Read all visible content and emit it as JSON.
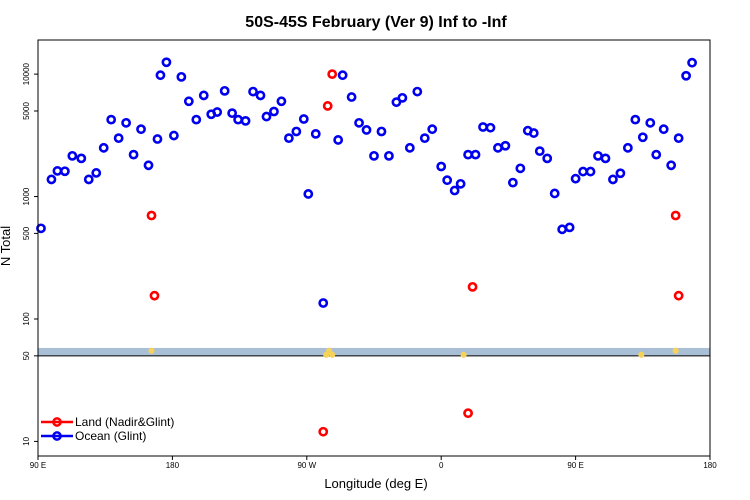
{
  "chart_data": {
    "type": "scatter",
    "title": "50S-45S February (Ver 9)   Inf to -Inf",
    "xlabel": "Longitude (deg E)",
    "ylabel": "N Total",
    "y_scale": "log",
    "ylim": [
      7.6,
      19000
    ],
    "y_ticks": [
      {
        "value": 10,
        "label": "10"
      },
      {
        "value": 50,
        "label": "50"
      },
      {
        "value": 100,
        "label": "100"
      },
      {
        "value": 500,
        "label": "500"
      },
      {
        "value": 1000,
        "label": "1000"
      },
      {
        "value": 5000,
        "label": "5000"
      },
      {
        "value": 10000,
        "label": "10000"
      }
    ],
    "x_ticks": [
      {
        "value": 90,
        "label": "90 E"
      },
      {
        "value": 180,
        "label": "180"
      },
      {
        "value": 270,
        "label": "90 W"
      },
      {
        "value": 360,
        "label": "0"
      },
      {
        "value": 450,
        "label": "90 E"
      },
      {
        "value": 540,
        "label": "180"
      }
    ],
    "xlim": [
      90,
      540
    ],
    "band": {
      "y_from": 50,
      "y_to": 58,
      "color": "#a9bfd6"
    },
    "yellow_marks": [
      {
        "x": 166,
        "y": 55
      },
      {
        "x": 285,
        "y": 55
      },
      {
        "x": 283,
        "y": 51
      },
      {
        "x": 287,
        "y": 51
      },
      {
        "x": 375,
        "y": 51
      },
      {
        "x": 494,
        "y": 51
      },
      {
        "x": 517,
        "y": 55
      }
    ],
    "series": [
      {
        "name": "Land (Nadir&Glint)",
        "color": "#ff0000",
        "points": [
          {
            "x": 166,
            "y": 700
          },
          {
            "x": 168,
            "y": 155
          },
          {
            "x": 284,
            "y": 5500
          },
          {
            "x": 287,
            "y": 10000
          },
          {
            "x": 381,
            "y": 183
          },
          {
            "x": 517,
            "y": 700
          },
          {
            "x": 519,
            "y": 155
          },
          {
            "x": 281,
            "y": 12
          },
          {
            "x": 378,
            "y": 17
          }
        ]
      },
      {
        "name": "Ocean (Glint)",
        "color": "#0000ee",
        "points": [
          {
            "x": 92,
            "y": 550
          },
          {
            "x": 99,
            "y": 1380
          },
          {
            "x": 103,
            "y": 1620
          },
          {
            "x": 108,
            "y": 1610
          },
          {
            "x": 113,
            "y": 2150
          },
          {
            "x": 119,
            "y": 2050
          },
          {
            "x": 124,
            "y": 1380
          },
          {
            "x": 129,
            "y": 1560
          },
          {
            "x": 134,
            "y": 2500
          },
          {
            "x": 139,
            "y": 4250
          },
          {
            "x": 144,
            "y": 3000
          },
          {
            "x": 149,
            "y": 4000
          },
          {
            "x": 154,
            "y": 2200
          },
          {
            "x": 159,
            "y": 3550
          },
          {
            "x": 164,
            "y": 1800
          },
          {
            "x": 170,
            "y": 2950
          },
          {
            "x": 172,
            "y": 9800
          },
          {
            "x": 176,
            "y": 12500
          },
          {
            "x": 181,
            "y": 3150
          },
          {
            "x": 186,
            "y": 9500
          },
          {
            "x": 191,
            "y": 6000
          },
          {
            "x": 196,
            "y": 4250
          },
          {
            "x": 201,
            "y": 6700
          },
          {
            "x": 206,
            "y": 4700
          },
          {
            "x": 210,
            "y": 4900
          },
          {
            "x": 215,
            "y": 7300
          },
          {
            "x": 220,
            "y": 4800
          },
          {
            "x": 224,
            "y": 4250
          },
          {
            "x": 229,
            "y": 4150
          },
          {
            "x": 234,
            "y": 7200
          },
          {
            "x": 239,
            "y": 6700
          },
          {
            "x": 243,
            "y": 4500
          },
          {
            "x": 248,
            "y": 4950
          },
          {
            "x": 253,
            "y": 6000
          },
          {
            "x": 258,
            "y": 3000
          },
          {
            "x": 263,
            "y": 3400
          },
          {
            "x": 268,
            "y": 4300
          },
          {
            "x": 271,
            "y": 1050
          },
          {
            "x": 276,
            "y": 3250
          },
          {
            "x": 281,
            "y": 135
          },
          {
            "x": 291,
            "y": 2900
          },
          {
            "x": 294,
            "y": 9800
          },
          {
            "x": 300,
            "y": 6500
          },
          {
            "x": 305,
            "y": 4000
          },
          {
            "x": 310,
            "y": 3500
          },
          {
            "x": 315,
            "y": 2150
          },
          {
            "x": 320,
            "y": 3400
          },
          {
            "x": 325,
            "y": 2150
          },
          {
            "x": 330,
            "y": 5900
          },
          {
            "x": 334,
            "y": 6400
          },
          {
            "x": 339,
            "y": 2500
          },
          {
            "x": 344,
            "y": 7200
          },
          {
            "x": 349,
            "y": 3000
          },
          {
            "x": 354,
            "y": 3550
          },
          {
            "x": 360,
            "y": 1760
          },
          {
            "x": 364,
            "y": 1360
          },
          {
            "x": 369,
            "y": 1120
          },
          {
            "x": 373,
            "y": 1270
          },
          {
            "x": 378,
            "y": 2200
          },
          {
            "x": 383,
            "y": 2200
          },
          {
            "x": 388,
            "y": 3700
          },
          {
            "x": 393,
            "y": 3650
          },
          {
            "x": 398,
            "y": 2500
          },
          {
            "x": 403,
            "y": 2600
          },
          {
            "x": 408,
            "y": 1300
          },
          {
            "x": 413,
            "y": 1700
          },
          {
            "x": 418,
            "y": 3450
          },
          {
            "x": 422,
            "y": 3300
          },
          {
            "x": 426,
            "y": 2350
          },
          {
            "x": 431,
            "y": 2050
          },
          {
            "x": 436,
            "y": 1060
          },
          {
            "x": 441,
            "y": 540
          },
          {
            "x": 446,
            "y": 560
          },
          {
            "x": 450,
            "y": 1400
          },
          {
            "x": 455,
            "y": 1600
          },
          {
            "x": 460,
            "y": 1600
          },
          {
            "x": 465,
            "y": 2150
          },
          {
            "x": 470,
            "y": 2050
          },
          {
            "x": 475,
            "y": 1380
          },
          {
            "x": 480,
            "y": 1550
          },
          {
            "x": 485,
            "y": 2500
          },
          {
            "x": 490,
            "y": 4250
          },
          {
            "x": 495,
            "y": 3050
          },
          {
            "x": 500,
            "y": 4000
          },
          {
            "x": 504,
            "y": 2200
          },
          {
            "x": 509,
            "y": 3550
          },
          {
            "x": 514,
            "y": 1800
          },
          {
            "x": 519,
            "y": 3000
          },
          {
            "x": 524,
            "y": 9700
          },
          {
            "x": 528,
            "y": 12400
          }
        ]
      }
    ],
    "legend": {
      "placement": "bottom-left"
    }
  }
}
